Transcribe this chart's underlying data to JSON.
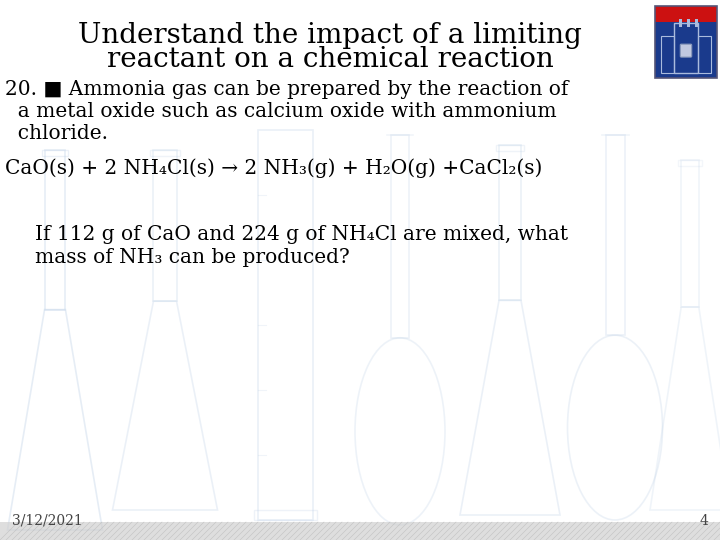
{
  "background_color": "#ffffff",
  "title_line1": "Understand the impact of a limiting",
  "title_line2": "reactant on a chemical reaction",
  "title_fontsize": 20,
  "title_color": "#000000",
  "body_color": "#000000",
  "body_fontsize": 14.5,
  "equation_fontsize": 14.5,
  "footer_fontsize": 10,
  "date_text": "3/12/2021",
  "page_number": "4",
  "paragraph_line1": "20. ■ Ammonia gas can be prepared by the reaction of",
  "paragraph_line2": "  a metal oxide such as calcium oxide with ammonium",
  "paragraph_line3": "  chloride.",
  "equation_text": "CaO(s) + 2 NH₄Cl(s) → 2 NH₃(g) + H₂O(g) +CaCl₂(s)",
  "question_line1": "If 112 g of CaO and 224 g of NH₄Cl are mixed, what",
  "question_line2": "mass of NH₃ can be produced?",
  "bottom_bar_color": "#c8c8c8",
  "flask_outline_color": "#b8cce4",
  "flask_alpha": 0.35
}
